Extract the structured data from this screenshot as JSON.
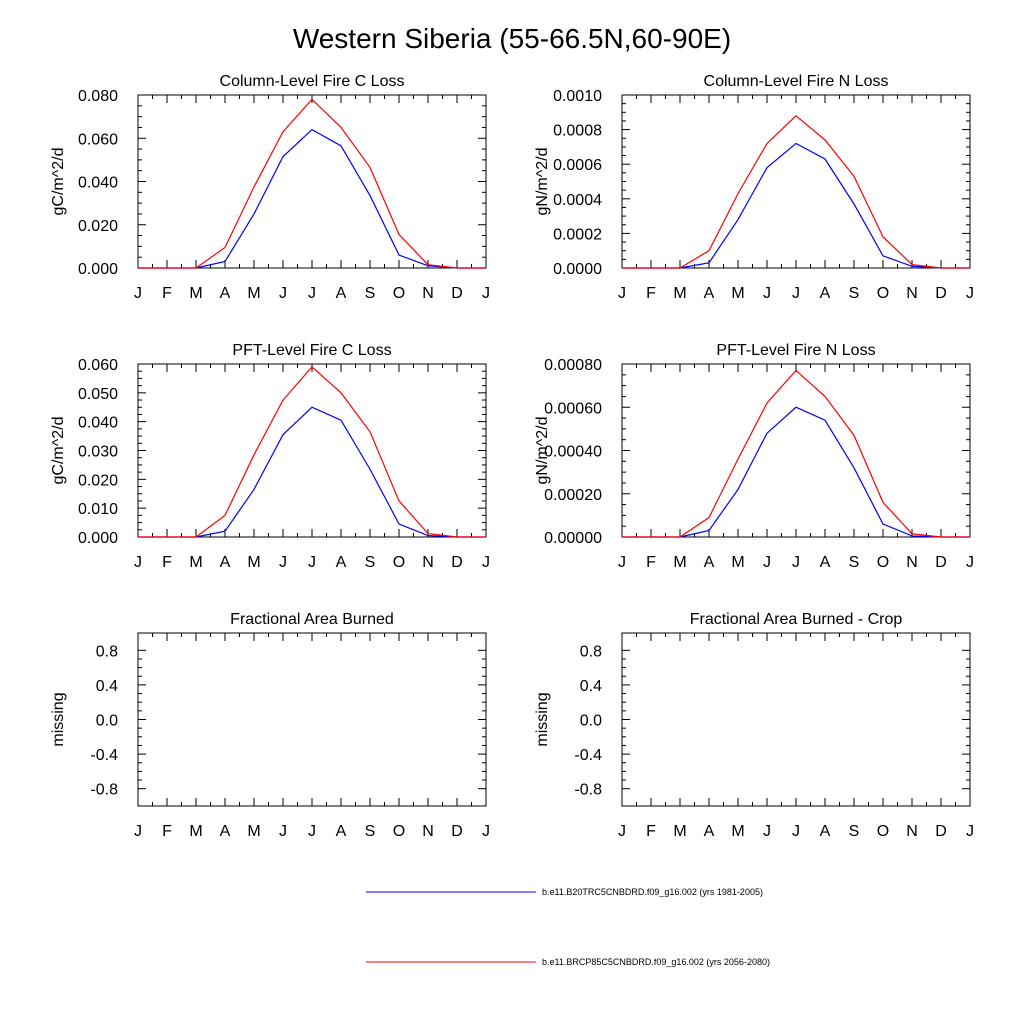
{
  "figure": {
    "title": "Western Siberia (55-66.5N,60-90E)"
  },
  "legend": {
    "entries": [
      {
        "label": "b.e11.B20TRC5CNBDRD.f09_g16.002 (yrs 1981-2005)",
        "color": "#0000ff"
      },
      {
        "label": "b.e11.BRCP85C5CNBDRD.f09_g16.002 (yrs 2056-2080)",
        "color": "#ff0000"
      }
    ]
  },
  "chart_data": [
    {
      "type": "line",
      "title": "Column-Level Fire C Loss",
      "xlabel": "",
      "ylabel": "gC/m^2/d",
      "categories": [
        "J",
        "F",
        "M",
        "A",
        "M",
        "J",
        "J",
        "A",
        "S",
        "O",
        "N",
        "D",
        "J"
      ],
      "ylim": [
        0,
        0.08
      ],
      "yticks": [
        0,
        0.02,
        0.04,
        0.06,
        0.08
      ],
      "yticklabels": [
        "0.000",
        "0.020",
        "0.040",
        "0.060",
        "0.080"
      ],
      "series": [
        {
          "name": "b.e11.B20TRC5CNBDRD.f09_g16.002 (yrs 1981-2005)",
          "color": "#0000ff",
          "values": [
            0,
            0,
            0,
            0.003,
            0.025,
            0.0515,
            0.064,
            0.0565,
            0.0335,
            0.006,
            0.001,
            0,
            0
          ]
        },
        {
          "name": "b.e11.BRCP85C5CNBDRD.f09_g16.002 (yrs 2056-2080)",
          "color": "#ff0000",
          "values": [
            0,
            0,
            0,
            0.0095,
            0.0375,
            0.063,
            0.078,
            0.065,
            0.0465,
            0.0155,
            0.0015,
            0,
            0
          ]
        }
      ]
    },
    {
      "type": "line",
      "title": "Column-Level Fire N Loss",
      "xlabel": "",
      "ylabel": "gN/m^2/d",
      "categories": [
        "J",
        "F",
        "M",
        "A",
        "M",
        "J",
        "J",
        "A",
        "S",
        "O",
        "N",
        "D",
        "J"
      ],
      "ylim": [
        0,
        0.001
      ],
      "yticks": [
        0,
        0.0002,
        0.0004,
        0.0006,
        0.0008,
        0.001
      ],
      "yticklabels": [
        "0.0000",
        "0.0002",
        "0.0004",
        "0.0006",
        "0.0008",
        "0.0010"
      ],
      "series": [
        {
          "name": "b.e11.B20TRC5CNBDRD.f09_g16.002 (yrs 1981-2005)",
          "color": "#0000ff",
          "values": [
            0,
            0,
            0,
            3e-05,
            0.00028,
            0.00058,
            0.00072,
            0.00063,
            0.00037,
            7e-05,
            1e-05,
            0,
            0
          ]
        },
        {
          "name": "b.e11.BRCP85C5CNBDRD.f09_g16.002 (yrs 2056-2080)",
          "color": "#ff0000",
          "values": [
            0,
            0,
            0,
            0.0001,
            0.00043,
            0.00072,
            0.00088,
            0.00074,
            0.00053,
            0.00018,
            2e-05,
            0,
            0
          ]
        }
      ]
    },
    {
      "type": "line",
      "title": "PFT-Level Fire C Loss",
      "xlabel": "",
      "ylabel": "gC/m^2/d",
      "categories": [
        "J",
        "F",
        "M",
        "A",
        "M",
        "J",
        "J",
        "A",
        "S",
        "O",
        "N",
        "D",
        "J"
      ],
      "ylim": [
        0,
        0.06
      ],
      "yticks": [
        0,
        0.01,
        0.02,
        0.03,
        0.04,
        0.05,
        0.06
      ],
      "yticklabels": [
        "0.000",
        "0.010",
        "0.020",
        "0.030",
        "0.040",
        "0.050",
        "0.060"
      ],
      "series": [
        {
          "name": "b.e11.B20TRC5CNBDRD.f09_g16.002 (yrs 1981-2005)",
          "color": "#0000ff",
          "values": [
            0,
            0,
            0,
            0.002,
            0.0165,
            0.0355,
            0.045,
            0.0405,
            0.0235,
            0.0045,
            0.0005,
            0,
            0
          ]
        },
        {
          "name": "b.e11.BRCP85C5CNBDRD.f09_g16.002 (yrs 2056-2080)",
          "color": "#ff0000",
          "values": [
            0,
            0,
            0,
            0.0075,
            0.0285,
            0.0475,
            0.059,
            0.05,
            0.0365,
            0.0125,
            0.0012,
            0,
            0
          ]
        }
      ]
    },
    {
      "type": "line",
      "title": "PFT-Level Fire N Loss",
      "xlabel": "",
      "ylabel": "gN/m^2/d",
      "categories": [
        "J",
        "F",
        "M",
        "A",
        "M",
        "J",
        "J",
        "A",
        "S",
        "O",
        "N",
        "D",
        "J"
      ],
      "ylim": [
        0,
        0.0008
      ],
      "yticks": [
        0,
        0.0002,
        0.0004,
        0.0006,
        0.0008
      ],
      "yticklabels": [
        "0.00000",
        "0.00020",
        "0.00040",
        "0.00060",
        "0.00080"
      ],
      "series": [
        {
          "name": "b.e11.B20TRC5CNBDRD.f09_g16.002 (yrs 1981-2005)",
          "color": "#0000ff",
          "values": [
            0,
            0,
            0,
            3e-05,
            0.00022,
            0.00048,
            0.0006,
            0.00054,
            0.00032,
            6e-05,
            5e-06,
            0,
            0
          ]
        },
        {
          "name": "b.e11.BRCP85C5CNBDRD.f09_g16.002 (yrs 2056-2080)",
          "color": "#ff0000",
          "values": [
            0,
            0,
            0,
            9e-05,
            0.00036,
            0.00062,
            0.00077,
            0.00065,
            0.00047,
            0.00016,
            1.5e-05,
            0,
            0
          ]
        }
      ]
    },
    {
      "type": "line",
      "title": "Fractional Area Burned",
      "xlabel": "",
      "ylabel": "missing",
      "categories": [
        "J",
        "F",
        "M",
        "A",
        "M",
        "J",
        "J",
        "A",
        "S",
        "O",
        "N",
        "D",
        "J"
      ],
      "ylim": [
        -1,
        1
      ],
      "yticks": [
        -0.8,
        -0.4,
        0,
        0.4,
        0.8
      ],
      "yticklabels": [
        "-0.8",
        "-0.4",
        "0.0",
        "0.4",
        "0.8"
      ],
      "series": []
    },
    {
      "type": "line",
      "title": "Fractional Area Burned - Crop",
      "xlabel": "",
      "ylabel": "missing",
      "categories": [
        "J",
        "F",
        "M",
        "A",
        "M",
        "J",
        "J",
        "A",
        "S",
        "O",
        "N",
        "D",
        "J"
      ],
      "ylim": [
        -1,
        1
      ],
      "yticks": [
        -0.8,
        -0.4,
        0,
        0.4,
        0.8
      ],
      "yticklabels": [
        "-0.8",
        "-0.4",
        "0.0",
        "0.4",
        "0.8"
      ],
      "series": []
    }
  ]
}
